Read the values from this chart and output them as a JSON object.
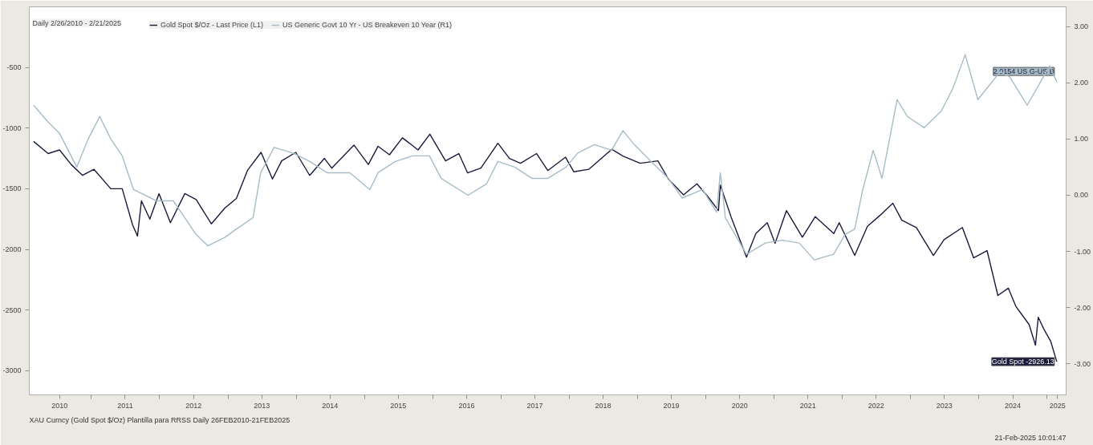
{
  "chart_data": {
    "type": "line",
    "legend_title": "Daily 2/26/2010 - 2/21/2025",
    "legend": "top left",
    "grid": false,
    "xlim": [
      "2010-02-03",
      "2025-04-12"
    ],
    "xticks": [
      {
        "value": "2010-07-15",
        "label": "2010"
      },
      {
        "value": "2011-01-01",
        "label": null
      },
      {
        "value": "2011-07-01",
        "label": "2011"
      },
      {
        "value": "2012-01-01",
        "label": null
      },
      {
        "value": "2012-07-01",
        "label": "2012"
      },
      {
        "value": "2013-01-01",
        "label": null
      },
      {
        "value": "2013-07-01",
        "label": "2013"
      },
      {
        "value": "2014-01-01",
        "label": null
      },
      {
        "value": "2014-07-01",
        "label": "2014"
      },
      {
        "value": "2015-01-01",
        "label": null
      },
      {
        "value": "2015-07-01",
        "label": "2015"
      },
      {
        "value": "2016-01-01",
        "label": null
      },
      {
        "value": "2016-07-01",
        "label": "2016"
      },
      {
        "value": "2017-01-01",
        "label": null
      },
      {
        "value": "2017-07-01",
        "label": "2017"
      },
      {
        "value": "2018-01-01",
        "label": null
      },
      {
        "value": "2018-07-01",
        "label": "2018"
      },
      {
        "value": "2019-01-01",
        "label": null
      },
      {
        "value": "2019-07-01",
        "label": "2019"
      },
      {
        "value": "2020-01-01",
        "label": null
      },
      {
        "value": "2020-07-01",
        "label": "2020"
      },
      {
        "value": "2021-01-01",
        "label": null
      },
      {
        "value": "2021-07-01",
        "label": "2021"
      },
      {
        "value": "2022-01-01",
        "label": null
      },
      {
        "value": "2022-07-01",
        "label": "2022"
      },
      {
        "value": "2023-01-01",
        "label": null
      },
      {
        "value": "2023-07-01",
        "label": "2023"
      },
      {
        "value": "2024-01-01",
        "label": null
      },
      {
        "value": "2024-07-01",
        "label": "2024"
      },
      {
        "value": "2025-01-01",
        "label": null
      },
      {
        "value": "2025-02-25",
        "label": "2025"
      }
    ],
    "ylim": [
      -3200,
      0
    ],
    "yticks": [
      -500,
      -1000,
      -1500,
      -2000,
      -2500,
      -3000
    ],
    "y2lim": [
      -3.55,
      3.35
    ],
    "y2ticks": [
      {
        "value": 3,
        "label": "3.00"
      },
      {
        "value": 2,
        "label": "2.00"
      },
      {
        "value": 1,
        "label": "1.00"
      },
      {
        "value": 0,
        "label": "0.00"
      },
      {
        "value": -1,
        "label": "-1.00"
      },
      {
        "value": -2,
        "label": "-2.00"
      },
      {
        "value": -3,
        "label": "-3.00"
      }
    ],
    "series": [
      {
        "name": "Gold Spot $/Oz - Last Price (L1)",
        "color": "#1b1b3d",
        "x": [
          "2010-02-26",
          "2010-05-15",
          "2010-07-15",
          "2010-09-15",
          "2010-11-15",
          "2011-01-15",
          "2011-04-15",
          "2011-06-15",
          "2011-08-10",
          "2011-09-05",
          "2011-09-26",
          "2011-11-10",
          "2011-12-29",
          "2012-02-28",
          "2012-05-15",
          "2012-07-15",
          "2012-10-04",
          "2012-12-15",
          "2013-02-15",
          "2013-04-15",
          "2013-06-27",
          "2013-08-27",
          "2013-10-15",
          "2013-12-30",
          "2014-03-14",
          "2014-06-01",
          "2014-07-10",
          "2014-11-06",
          "2015-01-22",
          "2015-03-15",
          "2015-05-15",
          "2015-07-23",
          "2015-10-15",
          "2015-12-17",
          "2016-03-10",
          "2016-05-20",
          "2016-07-06",
          "2016-09-15",
          "2016-12-15",
          "2017-02-15",
          "2017-04-15",
          "2017-07-10",
          "2017-09-08",
          "2017-12-12",
          "2018-01-25",
          "2018-04-15",
          "2018-08-16",
          "2018-10-15",
          "2019-01-15",
          "2019-04-20",
          "2019-06-15",
          "2019-09-04",
          "2019-11-15",
          "2020-01-15",
          "2020-03-09",
          "2020-03-19",
          "2020-05-15",
          "2020-08-06",
          "2020-09-25",
          "2020-11-25",
          "2021-01-06",
          "2021-03-08",
          "2021-06-01",
          "2021-08-09",
          "2021-11-16",
          "2021-12-15",
          "2022-03-08",
          "2022-05-15",
          "2022-07-21",
          "2022-09-28",
          "2022-11-15",
          "2023-02-01",
          "2023-05-03",
          "2023-06-29",
          "2023-10-05",
          "2023-12-04",
          "2024-02-14",
          "2024-04-12",
          "2024-06-07",
          "2024-07-17",
          "2024-09-26",
          "2024-10-30",
          "2024-11-14",
          "2024-12-15",
          "2025-01-20",
          "2025-02-21"
        ],
        "values": [
          -1110,
          -1210,
          -1180,
          -1300,
          -1390,
          -1340,
          -1500,
          -1500,
          -1800,
          -1890,
          -1600,
          -1750,
          -1540,
          -1780,
          -1540,
          -1590,
          -1790,
          -1660,
          -1580,
          -1350,
          -1200,
          -1420,
          -1270,
          -1200,
          -1390,
          -1250,
          -1330,
          -1140,
          -1300,
          -1150,
          -1220,
          -1080,
          -1180,
          -1050,
          -1270,
          -1210,
          -1370,
          -1330,
          -1125,
          -1250,
          -1290,
          -1210,
          -1350,
          -1240,
          -1360,
          -1340,
          -1175,
          -1230,
          -1290,
          -1270,
          -1420,
          -1550,
          -1460,
          -1570,
          -1680,
          -1470,
          -1730,
          -2065,
          -1870,
          -1780,
          -1950,
          -1680,
          -1900,
          -1730,
          -1870,
          -1780,
          -2050,
          -1810,
          -1720,
          -1620,
          -1760,
          -1820,
          -2050,
          -1920,
          -1820,
          -2070,
          -2010,
          -2380,
          -2320,
          -2470,
          -2620,
          -2790,
          -2560,
          -2660,
          -2760,
          -2926.13
        ],
        "value_labels": [
          null,
          null,
          null,
          null,
          null,
          null,
          null,
          null,
          null,
          null,
          null,
          null,
          null,
          null,
          null,
          null,
          null,
          null,
          null,
          null,
          null,
          null,
          null,
          null,
          null,
          null,
          null,
          null,
          null,
          null,
          null,
          null,
          null,
          null,
          null,
          null,
          null,
          null,
          null,
          null,
          null,
          null,
          null,
          null,
          null,
          null,
          null,
          null,
          null,
          null,
          null,
          null,
          null,
          null,
          null,
          null,
          null,
          null,
          null,
          null,
          null,
          null,
          null,
          null,
          null,
          null,
          null,
          null,
          null,
          null,
          null,
          null,
          null,
          null,
          null,
          null,
          null,
          null,
          null,
          null,
          null,
          null,
          null,
          null,
          null,
          "Gold Spot -2926.13"
        ]
      },
      {
        "name": "US Generic Govt 10 Yr - US Breakeven 10 Year (R1)",
        "color": "#a6bcc6",
        "axis": "y2",
        "x": [
          "2010-02-26",
          "2010-05-15",
          "2010-07-15",
          "2010-10-15",
          "2010-12-15",
          "2011-02-15",
          "2011-04-15",
          "2011-06-15",
          "2011-08-15",
          "2011-10-15",
          "2011-12-15",
          "2012-03-15",
          "2012-05-15",
          "2012-07-15",
          "2012-09-15",
          "2012-12-15",
          "2013-02-15",
          "2013-05-15",
          "2013-06-25",
          "2013-09-05",
          "2013-12-15",
          "2014-03-15",
          "2014-06-15",
          "2014-10-15",
          "2015-01-30",
          "2015-03-15",
          "2015-06-15",
          "2015-09-15",
          "2015-12-15",
          "2016-02-15",
          "2016-07-08",
          "2016-10-15",
          "2016-12-15",
          "2017-03-15",
          "2017-06-15",
          "2017-09-08",
          "2017-12-15",
          "2018-02-15",
          "2018-05-15",
          "2018-08-15",
          "2018-10-15",
          "2018-12-15",
          "2019-03-15",
          "2019-06-15",
          "2019-08-28",
          "2019-12-15",
          "2020-02-28",
          "2020-03-19",
          "2020-04-15",
          "2020-08-06",
          "2020-11-15",
          "2021-02-15",
          "2021-05-15",
          "2021-08-04",
          "2021-11-15",
          "2022-01-15",
          "2022-03-08",
          "2022-04-20",
          "2022-06-15",
          "2022-08-01",
          "2022-10-21",
          "2022-12-15",
          "2023-03-15",
          "2023-06-15",
          "2023-08-15",
          "2023-10-20",
          "2023-12-27",
          "2024-04-25",
          "2024-06-15",
          "2024-09-16",
          "2025-01-14",
          "2025-02-21"
        ],
        "values": [
          1.6,
          1.3,
          1.1,
          0.5,
          1.0,
          1.4,
          1.0,
          0.7,
          0.1,
          0.0,
          -0.1,
          -0.1,
          -0.4,
          -0.7,
          -0.9,
          -0.75,
          -0.6,
          -0.4,
          0.4,
          0.85,
          0.75,
          0.6,
          0.4,
          0.4,
          0.1,
          0.4,
          0.6,
          0.7,
          0.7,
          0.3,
          0.0,
          0.2,
          0.6,
          0.5,
          0.3,
          0.3,
          0.5,
          0.75,
          0.9,
          0.8,
          1.15,
          0.9,
          0.6,
          0.3,
          -0.05,
          0.1,
          -0.3,
          0.4,
          -0.4,
          -1.05,
          -0.85,
          -0.8,
          -0.85,
          -1.15,
          -1.05,
          -0.7,
          -0.6,
          0.1,
          0.8,
          0.3,
          1.7,
          1.4,
          1.2,
          1.5,
          1.9,
          2.5,
          1.7,
          2.2,
          2.1,
          1.6,
          2.3,
          2.0154
        ],
        "value_labels": [
          null,
          null,
          null,
          null,
          null,
          null,
          null,
          null,
          null,
          null,
          null,
          null,
          null,
          null,
          null,
          null,
          null,
          null,
          null,
          null,
          null,
          null,
          null,
          null,
          null,
          null,
          null,
          null,
          null,
          null,
          null,
          null,
          null,
          null,
          null,
          null,
          null,
          null,
          null,
          null,
          null,
          null,
          null,
          null,
          null,
          null,
          null,
          null,
          null,
          null,
          null,
          null,
          null,
          null,
          null,
          null,
          null,
          null,
          null,
          null,
          null,
          null,
          null,
          null,
          null,
          null,
          null,
          null,
          null,
          null,
          null,
          "2.0154 US G-US B"
        ]
      }
    ],
    "annotations": [
      "XAU Curncy (Gold Spot $/Oz) Plantilla para RRSS Daily 26FEB2010-21FEB2025",
      "21-Feb-2025 10:01:47"
    ]
  }
}
